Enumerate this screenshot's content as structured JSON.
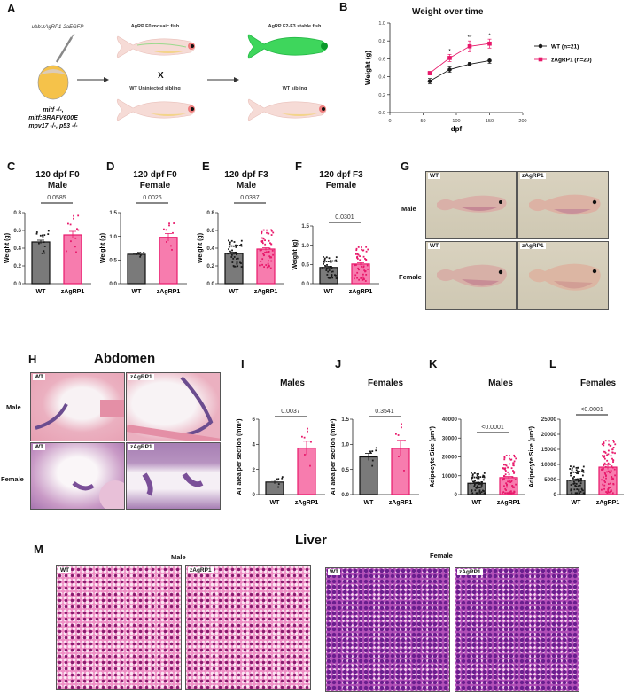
{
  "panels": {
    "A": {
      "label": "A",
      "injection_label": "ubb:zAgRP1-2aEGFP",
      "genotype_line1": "mitf -/-,",
      "genotype_line2": "mitf:BRAFV600E",
      "genotype_line3": "mpv17 -/-, p53 -/-",
      "f0_label": "AgRP F0 mosaic fish",
      "cross_symbol": "X",
      "uninjected_label": "WT Uninjected sibling",
      "stable_label": "AgRP F2-F3 stable fish",
      "sibling_label": "WT sibling"
    },
    "B": {
      "label": "B"
    },
    "C": {
      "label": "C"
    },
    "D": {
      "label": "D"
    },
    "E": {
      "label": "E"
    },
    "F": {
      "label": "F"
    },
    "G": {
      "label": "G",
      "row_labels": [
        "Male",
        "Female"
      ],
      "tags": [
        "WT",
        "zAgRP1",
        "WT",
        "zAgRP1"
      ]
    },
    "H": {
      "label": "H",
      "title": "Abdomen",
      "row_labels": [
        "Male",
        "Female"
      ],
      "tags": [
        "WT",
        "zAgRP1",
        "WT",
        "zAgRP1"
      ]
    },
    "I": {
      "label": "I"
    },
    "J": {
      "label": "J"
    },
    "K": {
      "label": "K"
    },
    "L": {
      "label": "L"
    },
    "M": {
      "label": "M",
      "title": "Liver",
      "group_labels": [
        "Male",
        "Female"
      ],
      "tags": [
        "WT",
        "zAgRP1",
        "WT",
        "zAgRP1"
      ]
    }
  },
  "colors": {
    "wt": "#1a1a1a",
    "wt_bar": "#7a7a7a",
    "agrp": "#e8196b",
    "agrp_bar": "#f77cae"
  },
  "chart_data": [
    {
      "id": "B",
      "type": "line",
      "title": "Weight over time",
      "xlabel": "dpf",
      "ylabel": "Weight (g)",
      "x": [
        60,
        90,
        120,
        150
      ],
      "xlim": [
        0,
        200
      ],
      "xticks": [
        0,
        50,
        100,
        150,
        200
      ],
      "ylim": [
        0,
        1.0
      ],
      "yticks": [
        "0.0",
        "0.2",
        "0.4",
        "0.6",
        "0.8",
        "1.0"
      ],
      "series": [
        {
          "name": "WT (n=21)",
          "values": [
            0.35,
            0.48,
            0.54,
            0.58
          ],
          "err": [
            0.03,
            0.03,
            0.02,
            0.03
          ]
        },
        {
          "name": "zAgRP1 (n=20)",
          "values": [
            0.44,
            0.61,
            0.74,
            0.77
          ],
          "err": [
            0.02,
            0.04,
            0.06,
            0.05
          ]
        }
      ],
      "annotations": [
        {
          "x": 90,
          "text": "*"
        },
        {
          "x": 120,
          "text": "**"
        },
        {
          "x": 150,
          "text": "*"
        }
      ],
      "legend_position": "right"
    },
    {
      "id": "C",
      "type": "bar",
      "title": "120 dpf F0 Male",
      "categories": [
        "WT",
        "zAgRP1"
      ],
      "values": [
        0.47,
        0.55
      ],
      "sem": [
        0.02,
        0.04
      ],
      "ylabel": "Weight (g)",
      "ylim": [
        0,
        0.8
      ],
      "yticks": [
        "0.0",
        "0.2",
        "0.4",
        "0.6",
        "0.8"
      ],
      "p_value": "0.0585"
    },
    {
      "id": "D",
      "type": "bar",
      "title": "120 dpf F0 Female",
      "categories": [
        "WT",
        "zAgRP1"
      ],
      "values": [
        0.62,
        0.98
      ],
      "sem": [
        0.02,
        0.08
      ],
      "ylabel": "Weight (g)",
      "ylim": [
        0,
        1.5
      ],
      "yticks": [
        "0.0",
        "0.5",
        "1.0",
        "1.5"
      ],
      "p_value": "0.0026"
    },
    {
      "id": "E",
      "type": "bar",
      "title": "120 dpf F3 Male",
      "categories": [
        "WT",
        "zAgRP1"
      ],
      "values": [
        0.34,
        0.39
      ],
      "sem": [
        0.015,
        0.015
      ],
      "ylabel": "Weight (g)",
      "ylim": [
        0,
        0.8
      ],
      "yticks": [
        "0.0",
        "0.2",
        "0.4",
        "0.6",
        "0.8"
      ],
      "p_value": "0.0387"
    },
    {
      "id": "F",
      "type": "bar",
      "title": "120 dpf F3 Female",
      "categories": [
        "WT",
        "zAgRP1"
      ],
      "values": [
        0.42,
        0.51
      ],
      "sem": [
        0.03,
        0.035
      ],
      "ylabel": "Weight (g)",
      "ylim": [
        0,
        1.5
      ],
      "yticks": [
        "0.0",
        "0.5",
        "1.0",
        "1.5"
      ],
      "p_value": "0.0301"
    },
    {
      "id": "I",
      "type": "bar",
      "title": "Males",
      "categories": [
        "WT",
        "zAgRP1"
      ],
      "values": [
        1.0,
        3.7
      ],
      "sem": [
        0.15,
        0.55
      ],
      "ylabel": "AT area per section (mm²)",
      "ylim": [
        0,
        6
      ],
      "yticks": [
        "0",
        "2",
        "4",
        "6"
      ],
      "p_value": "0.0037"
    },
    {
      "id": "J",
      "type": "bar",
      "title": "Females",
      "categories": [
        "WT",
        "zAgRP1"
      ],
      "values": [
        0.75,
        0.92
      ],
      "sem": [
        0.07,
        0.16
      ],
      "ylabel": "AT area per section (mm²)",
      "ylim": [
        0,
        1.5
      ],
      "yticks": [
        "0.0",
        "0.5",
        "1.0",
        "1.5"
      ],
      "p_value": "0.3541"
    },
    {
      "id": "K",
      "type": "bar",
      "title": "Males",
      "categories": [
        "WT",
        "zAgRP1"
      ],
      "values": [
        6000,
        9000
      ],
      "sem": [
        500,
        600
      ],
      "ylabel": "Adipocyte Size (µm²)",
      "ylim": [
        0,
        40000
      ],
      "yticks": [
        "0",
        "10000",
        "20000",
        "30000",
        "40000"
      ],
      "p_value": "<0.0001"
    },
    {
      "id": "L",
      "type": "bar",
      "title": "Females",
      "categories": [
        "WT",
        "zAgRP1"
      ],
      "values": [
        4800,
        9100
      ],
      "sem": [
        400,
        700
      ],
      "ylabel": "Adipocyte Size (µm²)",
      "ylim": [
        0,
        25000
      ],
      "yticks": [
        "0",
        "5000",
        "10000",
        "15000",
        "20000",
        "25000"
      ],
      "p_value": "<0.0001"
    }
  ]
}
